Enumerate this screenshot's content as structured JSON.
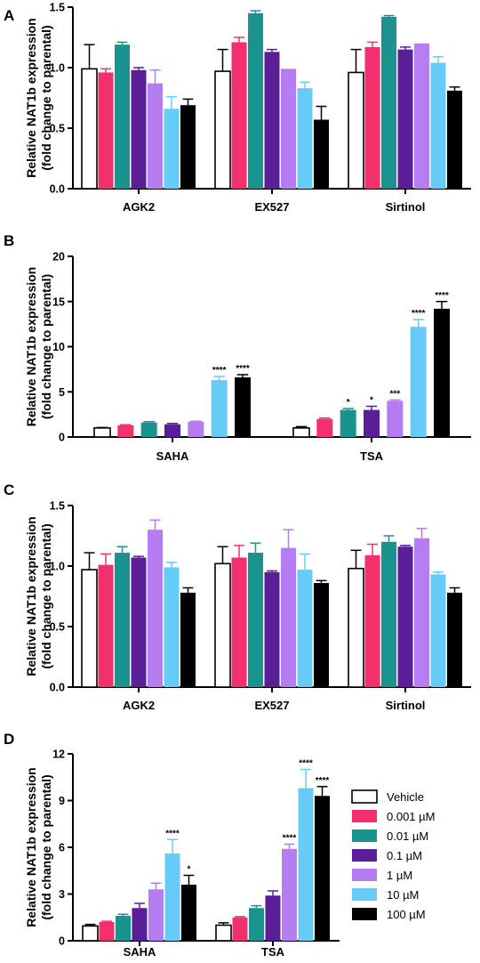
{
  "colors": {
    "Vehicle": "#ffffff",
    "0.001 µM": "#f2306e",
    "0.01 µM": "#1a938e",
    "0.1 µM": "#5a1f96",
    "1 µM": "#b67cf2",
    "10 µM": "#66ccf7",
    "100 µM": "#000000"
  },
  "legend": {
    "position": "right of panel D",
    "entries": [
      "Vehicle",
      "0.001 µM",
      "0.01 µM",
      "0.1 µM",
      "1 µM",
      "10 µM",
      "100 µM"
    ]
  },
  "chart_data": [
    {
      "panel": "A",
      "type": "bar",
      "ylabel_line1": "Relative NAT1b expression",
      "ylabel_line2": "(fold change to parental)",
      "categories": [
        "AGK2",
        "EX527",
        "Sirtinol"
      ],
      "ylim": [
        0,
        1.5
      ],
      "yticks": [
        "0.0",
        "0.5",
        "1.0",
        "1.5"
      ],
      "series": [
        {
          "name": "Vehicle",
          "values": [
            0.99,
            0.97,
            0.96
          ],
          "errors": [
            0.2,
            0.18,
            0.19
          ]
        },
        {
          "name": "0.001 µM",
          "values": [
            0.96,
            1.21,
            1.17
          ],
          "errors": [
            0.03,
            0.04,
            0.04
          ]
        },
        {
          "name": "0.01 µM",
          "values": [
            1.19,
            1.45,
            1.42
          ],
          "errors": [
            0.02,
            0.02,
            0.01
          ]
        },
        {
          "name": "0.1 µM",
          "values": [
            0.98,
            1.13,
            1.15
          ],
          "errors": [
            0.02,
            0.02,
            0.02
          ]
        },
        {
          "name": "1 µM",
          "values": [
            0.87,
            0.99,
            1.2
          ],
          "errors": [
            0.11,
            0.0,
            0.0
          ]
        },
        {
          "name": "10 µM",
          "values": [
            0.66,
            0.83,
            1.04
          ],
          "errors": [
            0.1,
            0.05,
            0.05
          ]
        },
        {
          "name": "100 µM",
          "values": [
            0.69,
            0.57,
            0.81
          ],
          "errors": [
            0.05,
            0.11,
            0.03
          ]
        }
      ],
      "annotations": []
    },
    {
      "panel": "B",
      "type": "bar",
      "ylabel_line1": "Relative NAT1b expression",
      "ylabel_line2": "(fold change to parental)",
      "categories": [
        "SAHA",
        "TSA"
      ],
      "ylim": [
        0,
        20
      ],
      "yticks": [
        "0",
        "5",
        "10",
        "15",
        "20"
      ],
      "series": [
        {
          "name": "Vehicle",
          "values": [
            1.0,
            1.0
          ],
          "errors": [
            0.05,
            0.15
          ]
        },
        {
          "name": "0.001 µM",
          "values": [
            1.3,
            2.0
          ],
          "errors": [
            0.05,
            0.1
          ]
        },
        {
          "name": "0.01 µM",
          "values": [
            1.6,
            3.0
          ],
          "errors": [
            0.1,
            0.15
          ]
        },
        {
          "name": "0.1 µM",
          "values": [
            1.4,
            3.0
          ],
          "errors": [
            0.1,
            0.4
          ]
        },
        {
          "name": "1 µM",
          "values": [
            1.7,
            4.0
          ],
          "errors": [
            0.05,
            0.1
          ]
        },
        {
          "name": "10 µM",
          "values": [
            6.3,
            12.2
          ],
          "errors": [
            0.4,
            0.8
          ]
        },
        {
          "name": "100 µM",
          "values": [
            6.6,
            14.2
          ],
          "errors": [
            0.3,
            0.8
          ]
        }
      ],
      "annotations": [
        {
          "category": 0,
          "series": 5,
          "text": "****"
        },
        {
          "category": 0,
          "series": 6,
          "text": "****"
        },
        {
          "category": 1,
          "series": 2,
          "text": "*"
        },
        {
          "category": 1,
          "series": 3,
          "text": "*"
        },
        {
          "category": 1,
          "series": 4,
          "text": "***"
        },
        {
          "category": 1,
          "series": 5,
          "text": "****"
        },
        {
          "category": 1,
          "series": 6,
          "text": "****"
        }
      ]
    },
    {
      "panel": "C",
      "type": "bar",
      "ylabel_line1": "Relative NAT1b expression",
      "ylabel_line2": "(fold change to parental)",
      "categories": [
        "AGK2",
        "EX527",
        "Sirtinol"
      ],
      "ylim": [
        0,
        1.5
      ],
      "yticks": [
        "0.0",
        "0.5",
        "1.0",
        "1.5"
      ],
      "series": [
        {
          "name": "Vehicle",
          "values": [
            0.97,
            1.02,
            0.98
          ],
          "errors": [
            0.14,
            0.14,
            0.15
          ]
        },
        {
          "name": "0.001 µM",
          "values": [
            1.01,
            1.07,
            1.09
          ],
          "errors": [
            0.09,
            0.1,
            0.09
          ]
        },
        {
          "name": "0.01 µM",
          "values": [
            1.11,
            1.11,
            1.2
          ],
          "errors": [
            0.05,
            0.08,
            0.05
          ]
        },
        {
          "name": "0.1 µM",
          "values": [
            1.07,
            0.95,
            1.16
          ],
          "errors": [
            0.01,
            0.01,
            0.01
          ]
        },
        {
          "name": "1 µM",
          "values": [
            1.3,
            1.15,
            1.23
          ],
          "errors": [
            0.08,
            0.15,
            0.08
          ]
        },
        {
          "name": "10 µM",
          "values": [
            0.99,
            0.97,
            0.93
          ],
          "errors": [
            0.04,
            0.13,
            0.02
          ]
        },
        {
          "name": "100 µM",
          "values": [
            0.78,
            0.86,
            0.78
          ],
          "errors": [
            0.04,
            0.02,
            0.04
          ]
        }
      ],
      "annotations": []
    },
    {
      "panel": "D",
      "type": "bar",
      "ylabel_line1": "Relative NAT1b expression",
      "ylabel_line2": "(fold change to parental)",
      "categories": [
        "SAHA",
        "TSA"
      ],
      "ylim": [
        0,
        12
      ],
      "yticks": [
        "0",
        "3",
        "6",
        "9",
        "12"
      ],
      "series": [
        {
          "name": "Vehicle",
          "values": [
            0.95,
            1.0
          ],
          "errors": [
            0.1,
            0.15
          ]
        },
        {
          "name": "0.001 µM",
          "values": [
            1.2,
            1.5
          ],
          "errors": [
            0.05,
            0.05
          ]
        },
        {
          "name": "0.01 µM",
          "values": [
            1.6,
            2.1
          ],
          "errors": [
            0.1,
            0.15
          ]
        },
        {
          "name": "0.1 µM",
          "values": [
            2.1,
            2.9
          ],
          "errors": [
            0.3,
            0.3
          ]
        },
        {
          "name": "1 µM",
          "values": [
            3.3,
            5.9
          ],
          "errors": [
            0.4,
            0.3
          ]
        },
        {
          "name": "10 µM",
          "values": [
            5.6,
            9.8
          ],
          "errors": [
            0.9,
            1.2
          ]
        },
        {
          "name": "100 µM",
          "values": [
            3.6,
            9.3
          ],
          "errors": [
            0.6,
            0.6
          ]
        }
      ],
      "annotations": [
        {
          "category": 0,
          "series": 5,
          "text": "****"
        },
        {
          "category": 0,
          "series": 6,
          "text": "*"
        },
        {
          "category": 1,
          "series": 4,
          "text": "****"
        },
        {
          "category": 1,
          "series": 5,
          "text": "****"
        },
        {
          "category": 1,
          "series": 6,
          "text": "****"
        }
      ]
    }
  ]
}
